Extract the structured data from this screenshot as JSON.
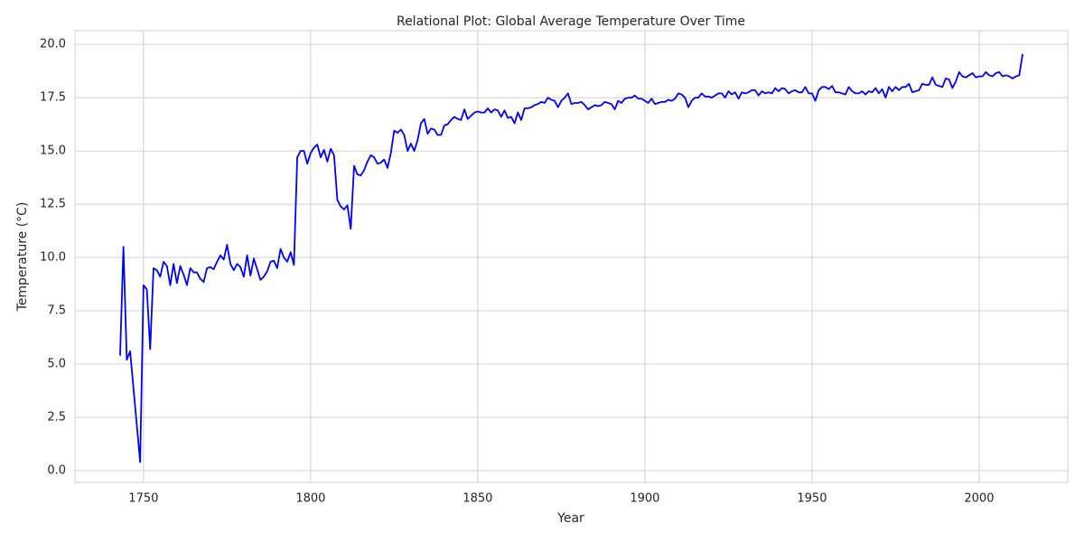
{
  "chart_data": {
    "type": "line",
    "title": "Relational Plot: Global Average Temperature Over Time",
    "x_label": "Year",
    "y_label": "Temperature (°C)",
    "color": "#0000ff",
    "grid": true,
    "xlim": [
      1729.5,
      2026.5
    ],
    "ylim": [
      -0.55,
      20.64
    ],
    "xticks": [
      1750,
      1800,
      1850,
      1900,
      1950,
      2000
    ],
    "yticks": [
      {
        "value": 0,
        "label": "0.0"
      },
      2.5,
      {
        "value": 5,
        "label": "5.0"
      },
      7.5,
      {
        "value": 10,
        "label": "10.0"
      },
      12.5,
      {
        "value": 15,
        "label": "15.0"
      },
      17.5,
      {
        "value": 20,
        "label": "20.0"
      }
    ],
    "x": [
      1743,
      1744,
      1745,
      1746,
      1749,
      1750,
      1751,
      1752,
      1753,
      1754,
      1755,
      1756,
      1757,
      1758,
      1759,
      1760,
      1761,
      1762,
      1763,
      1764,
      1765,
      1766,
      1767,
      1768,
      1769,
      1770,
      1771,
      1772,
      1773,
      1774,
      1775,
      1776,
      1777,
      1778,
      1779,
      1780,
      1781,
      1782,
      1783,
      1784,
      1785,
      1786,
      1787,
      1788,
      1789,
      1790,
      1791,
      1792,
      1793,
      1794,
      1795,
      1796,
      1797,
      1798,
      1799,
      1800,
      1801,
      1802,
      1803,
      1804,
      1805,
      1806,
      1807,
      1808,
      1809,
      1810,
      1811,
      1812,
      1813,
      1814,
      1815,
      1816,
      1817,
      1818,
      1819,
      1820,
      1821,
      1822,
      1823,
      1824,
      1825,
      1826,
      1827,
      1828,
      1829,
      1830,
      1831,
      1832,
      1833,
      1834,
      1835,
      1836,
      1837,
      1838,
      1839,
      1840,
      1841,
      1842,
      1843,
      1844,
      1845,
      1846,
      1847,
      1848,
      1849,
      1850,
      1851,
      1852,
      1853,
      1854,
      1855,
      1856,
      1857,
      1858,
      1859,
      1860,
      1861,
      1862,
      1863,
      1864,
      1865,
      1866,
      1867,
      1868,
      1869,
      1870,
      1871,
      1872,
      1873,
      1874,
      1875,
      1876,
      1877,
      1878,
      1879,
      1880,
      1881,
      1882,
      1883,
      1884,
      1885,
      1886,
      1887,
      1888,
      1889,
      1890,
      1891,
      1892,
      1893,
      1894,
      1895,
      1896,
      1897,
      1898,
      1899,
      1900,
      1901,
      1902,
      1903,
      1904,
      1905,
      1906,
      1907,
      1908,
      1909,
      1910,
      1911,
      1912,
      1913,
      1914,
      1915,
      1916,
      1917,
      1918,
      1919,
      1920,
      1921,
      1922,
      1923,
      1924,
      1925,
      1926,
      1927,
      1928,
      1929,
      1930,
      1931,
      1932,
      1933,
      1934,
      1935,
      1936,
      1937,
      1938,
      1939,
      1940,
      1941,
      1942,
      1943,
      1944,
      1945,
      1946,
      1947,
      1948,
      1949,
      1950,
      1951,
      1952,
      1953,
      1954,
      1955,
      1956,
      1957,
      1958,
      1959,
      1960,
      1961,
      1962,
      1963,
      1964,
      1965,
      1966,
      1967,
      1968,
      1969,
      1970,
      1971,
      1972,
      1973,
      1974,
      1975,
      1976,
      1977,
      1978,
      1979,
      1980,
      1981,
      1982,
      1983,
      1984,
      1985,
      1986,
      1987,
      1988,
      1989,
      1990,
      1991,
      1992,
      1993,
      1994,
      1995,
      1996,
      1997,
      1998,
      1999,
      2000,
      2001,
      2002,
      2003,
      2004,
      2005,
      2006,
      2007,
      2008,
      2009,
      2010,
      2011,
      2012,
      2013
    ],
    "values": [
      5.4,
      10.5,
      5.2,
      5.6,
      0.4,
      8.7,
      8.5,
      5.7,
      9.5,
      9.4,
      9.1,
      9.8,
      9.6,
      8.7,
      9.7,
      8.8,
      9.6,
      9.2,
      8.7,
      9.5,
      9.3,
      9.3,
      9.0,
      8.85,
      9.5,
      9.55,
      9.45,
      9.8,
      10.1,
      9.9,
      10.6,
      9.7,
      9.4,
      9.7,
      9.55,
      9.1,
      10.1,
      9.15,
      9.95,
      9.45,
      8.95,
      9.1,
      9.35,
      9.8,
      9.85,
      9.5,
      10.4,
      10.0,
      9.8,
      10.25,
      9.65,
      14.7,
      15.0,
      15.0,
      14.4,
      14.9,
      15.15,
      15.3,
      14.7,
      15.05,
      14.5,
      15.1,
      14.8,
      12.7,
      12.4,
      12.25,
      12.45,
      11.35,
      14.3,
      13.9,
      13.85,
      14.1,
      14.5,
      14.8,
      14.7,
      14.4,
      14.45,
      14.6,
      14.2,
      14.9,
      15.95,
      15.85,
      16.0,
      15.75,
      15.0,
      15.35,
      15.0,
      15.5,
      16.3,
      16.5,
      15.8,
      16.05,
      16.0,
      15.75,
      15.75,
      16.2,
      16.25,
      16.45,
      16.6,
      16.5,
      16.45,
      16.95,
      16.5,
      16.65,
      16.8,
      16.85,
      16.8,
      16.8,
      17.0,
      16.8,
      16.95,
      16.9,
      16.6,
      16.9,
      16.55,
      16.6,
      16.3,
      16.8,
      16.45,
      17.0,
      17.0,
      17.05,
      17.15,
      17.2,
      17.3,
      17.25,
      17.5,
      17.4,
      17.35,
      17.05,
      17.35,
      17.5,
      17.7,
      17.2,
      17.25,
      17.25,
      17.3,
      17.15,
      16.95,
      17.05,
      17.15,
      17.1,
      17.15,
      17.3,
      17.25,
      17.2,
      16.95,
      17.35,
      17.25,
      17.45,
      17.5,
      17.5,
      17.6,
      17.45,
      17.45,
      17.35,
      17.25,
      17.45,
      17.2,
      17.25,
      17.3,
      17.3,
      17.4,
      17.35,
      17.45,
      17.7,
      17.65,
      17.5,
      17.05,
      17.35,
      17.5,
      17.5,
      17.7,
      17.55,
      17.55,
      17.5,
      17.6,
      17.7,
      17.7,
      17.5,
      17.8,
      17.65,
      17.75,
      17.45,
      17.75,
      17.7,
      17.75,
      17.85,
      17.85,
      17.6,
      17.8,
      17.7,
      17.75,
      17.7,
      17.95,
      17.8,
      17.95,
      17.9,
      17.7,
      17.8,
      17.85,
      17.75,
      17.75,
      18.0,
      17.7,
      17.7,
      17.35,
      17.85,
      18.0,
      18.0,
      17.9,
      18.05,
      17.75,
      17.75,
      17.7,
      17.65,
      18.0,
      17.8,
      17.7,
      17.7,
      17.8,
      17.65,
      17.8,
      17.75,
      17.95,
      17.7,
      17.9,
      17.5,
      18.0,
      17.8,
      18.0,
      17.85,
      18.0,
      18.0,
      18.15,
      17.75,
      17.8,
      17.85,
      18.15,
      18.1,
      18.1,
      18.45,
      18.1,
      18.05,
      18.0,
      18.4,
      18.35,
      17.95,
      18.25,
      18.7,
      18.5,
      18.45,
      18.55,
      18.65,
      18.45,
      18.5,
      18.5,
      18.7,
      18.55,
      18.5,
      18.65,
      18.7,
      18.5,
      18.55,
      18.5,
      18.4,
      18.5,
      18.55,
      19.55
    ]
  }
}
